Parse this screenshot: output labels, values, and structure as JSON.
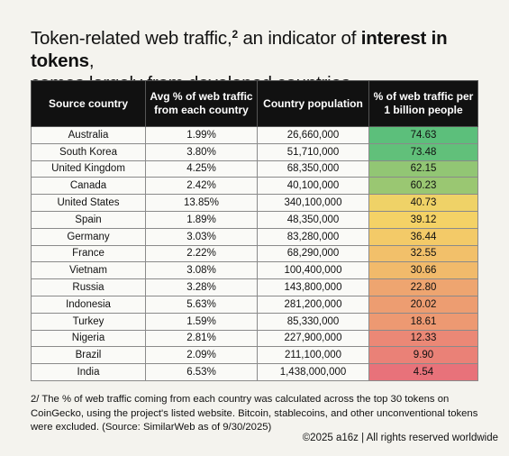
{
  "title": {
    "part1": "Token-related web traffic,",
    "sup": "2",
    "part2": " an indicator of ",
    "bold": "interest in tokens",
    "part3": ",",
    "line2": "comes largely from developed countries"
  },
  "chart_data": {
    "type": "table",
    "columns": [
      "Source country",
      "Avg % of web traffic from each country",
      "Country population",
      "% of web traffic per 1 billion people"
    ],
    "rows": [
      {
        "country": "Australia",
        "traffic": "1.99%",
        "population": "26,660,000",
        "per_billion": "74.63",
        "value": 74.63
      },
      {
        "country": "South Korea",
        "traffic": "3.80%",
        "population": "51,710,000",
        "per_billion": "73.48",
        "value": 73.48
      },
      {
        "country": "United Kingdom",
        "traffic": "4.25%",
        "population": "68,350,000",
        "per_billion": "62.15",
        "value": 62.15
      },
      {
        "country": "Canada",
        "traffic": "2.42%",
        "population": "40,100,000",
        "per_billion": "60.23",
        "value": 60.23
      },
      {
        "country": "United States",
        "traffic": "13.85%",
        "population": "340,100,000",
        "per_billion": "40.73",
        "value": 40.73
      },
      {
        "country": "Spain",
        "traffic": "1.89%",
        "population": "48,350,000",
        "per_billion": "39.12",
        "value": 39.12
      },
      {
        "country": "Germany",
        "traffic": "3.03%",
        "population": "83,280,000",
        "per_billion": "36.44",
        "value": 36.44
      },
      {
        "country": "France",
        "traffic": "2.22%",
        "population": "68,290,000",
        "per_billion": "32.55",
        "value": 32.55
      },
      {
        "country": "Vietnam",
        "traffic": "3.08%",
        "population": "100,400,000",
        "per_billion": "30.66",
        "value": 30.66
      },
      {
        "country": "Russia",
        "traffic": "3.28%",
        "population": "143,800,000",
        "per_billion": "22.80",
        "value": 22.8
      },
      {
        "country": "Indonesia",
        "traffic": "5.63%",
        "population": "281,200,000",
        "per_billion": "20.02",
        "value": 20.02
      },
      {
        "country": "Turkey",
        "traffic": "1.59%",
        "population": "85,330,000",
        "per_billion": "18.61",
        "value": 18.61
      },
      {
        "country": "Nigeria",
        "traffic": "2.81%",
        "population": "227,900,000",
        "per_billion": "12.33",
        "value": 12.33
      },
      {
        "country": "Brazil",
        "traffic": "2.09%",
        "population": "211,100,000",
        "per_billion": "9.90",
        "value": 9.9
      },
      {
        "country": "India",
        "traffic": "6.53%",
        "population": "1,438,000,000",
        "per_billion": "4.54",
        "value": 4.54
      }
    ],
    "heatmap_colors": {
      "high": "#5cbf7b",
      "mid": "#f4d366",
      "low": "#e8727a"
    }
  },
  "footnote": "2/ The % of web traffic coming from each country was calculated across the top 30 tokens on CoinGecko, using the project's listed website. Bitcoin, stablecoins, and other unconventional tokens were excluded. (Source: SimilarWeb as of 9/30/2025)",
  "copyright": "©2025 a16z | All rights reserved worldwide"
}
